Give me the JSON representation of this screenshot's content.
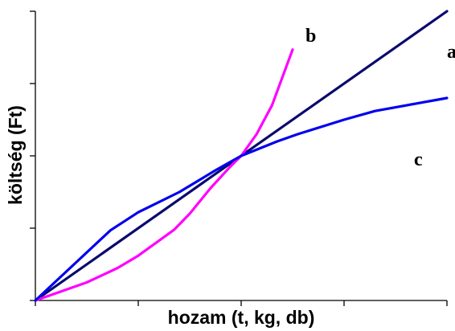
{
  "chart_data": {
    "type": "line",
    "title": "",
    "xlabel": "hozam (t, kg, db)",
    "ylabel": "költség (Ft)",
    "xlim": [
      0,
      4
    ],
    "ylim": [
      0,
      4
    ],
    "x_ticks": [
      0,
      1,
      2,
      3,
      4
    ],
    "y_ticks": [
      0,
      1,
      2,
      3,
      4
    ],
    "grid": false,
    "series": [
      {
        "name": "a",
        "color": "#0a0a6e",
        "x": [
          0,
          4
        ],
        "y": [
          0,
          4
        ]
      },
      {
        "name": "b",
        "color": "#ff00ff",
        "x": [
          0,
          0.5,
          0.8,
          1.0,
          1.35,
          1.5,
          1.7,
          1.9,
          2.0,
          2.15,
          2.3,
          2.5
        ],
        "y": [
          0,
          0.25,
          0.45,
          0.62,
          0.98,
          1.2,
          1.55,
          1.86,
          2.0,
          2.3,
          2.7,
          3.47
        ]
      },
      {
        "name": "c",
        "color": "#0000ee",
        "x": [
          0,
          0.73,
          1.0,
          1.4,
          1.75,
          2.0,
          2.35,
          2.55,
          3.0,
          3.3,
          4.0
        ],
        "y": [
          0,
          0.97,
          1.22,
          1.5,
          1.8,
          2.0,
          2.2,
          2.3,
          2.5,
          2.62,
          2.8
        ]
      }
    ]
  }
}
